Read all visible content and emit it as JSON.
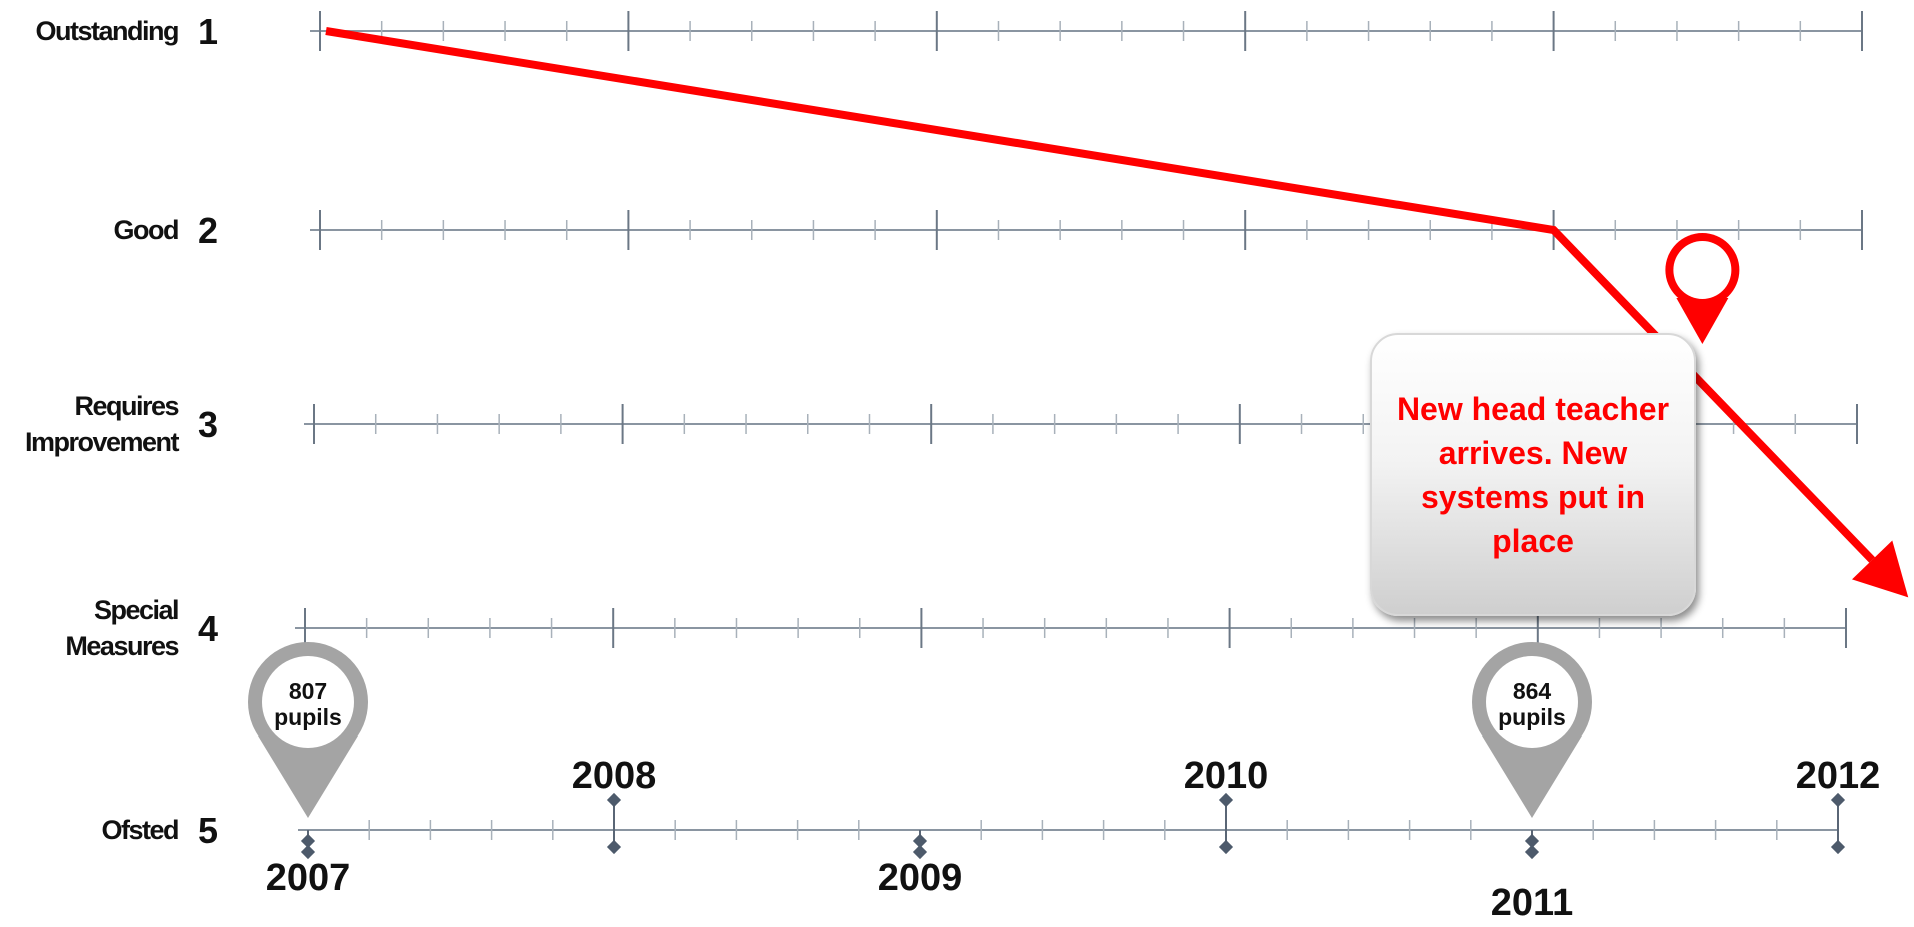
{
  "chart_data": {
    "type": "line",
    "y_levels": [
      {
        "number": "1",
        "lines": [
          "Outstanding"
        ]
      },
      {
        "number": "2",
        "lines": [
          "Good"
        ]
      },
      {
        "number": "3",
        "lines": [
          "Requires",
          "Improvement"
        ]
      },
      {
        "number": "4",
        "lines": [
          "Special",
          "Measures"
        ]
      },
      {
        "number": "5",
        "lines": [
          "Ofsted"
        ]
      }
    ],
    "ylim": [
      1,
      5
    ],
    "xlim": [
      2007,
      2012
    ],
    "years": [
      {
        "label": "2007",
        "x": 2007,
        "side": "below"
      },
      {
        "label": "2008",
        "x": 2008,
        "side": "above"
      },
      {
        "label": "2009",
        "x": 2009,
        "side": "below"
      },
      {
        "label": "2010",
        "x": 2010,
        "side": "above"
      },
      {
        "label": "2011",
        "x": 2011,
        "side": "below"
      },
      {
        "label": "2012",
        "x": 2012,
        "side": "above"
      }
    ],
    "series": [
      {
        "color": "#ff0000",
        "points": [
          {
            "x": 2007,
            "y": 1
          },
          {
            "x": 2011,
            "y": 2
          },
          {
            "x": 2012.15,
            "y": 3.85
          }
        ]
      }
    ],
    "markers": [
      {
        "x": 2007,
        "value": "807",
        "unit": "pupils"
      },
      {
        "x": 2011,
        "value": "864",
        "unit": "pupils"
      }
    ],
    "event_marker_x": 2011.45,
    "annotation": "New head teacher arrives. New systems put in place"
  }
}
